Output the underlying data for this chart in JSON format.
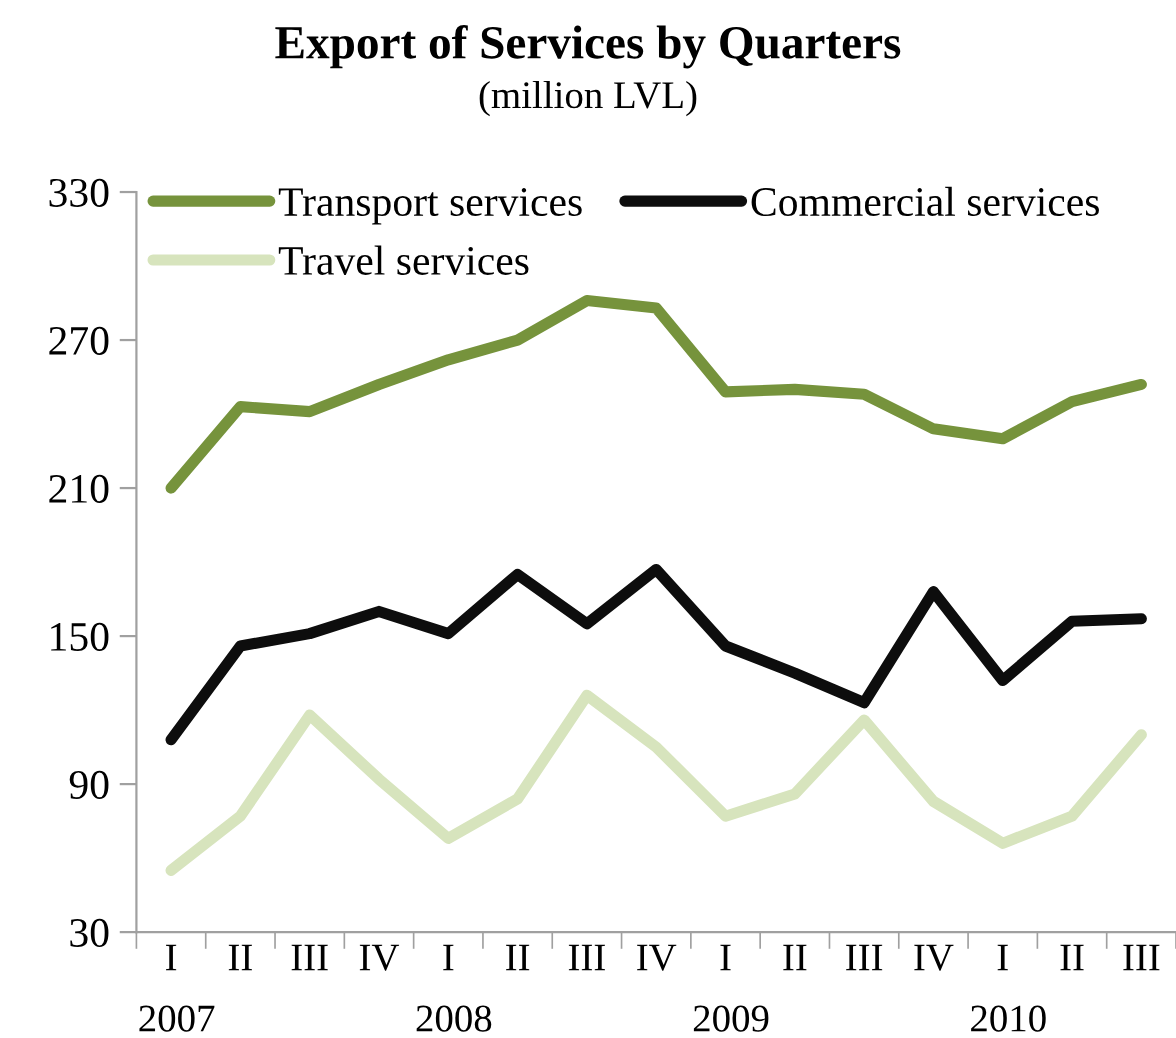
{
  "chart_data": {
    "type": "line",
    "title": "Export of Services by Quarters",
    "subtitle": "(million LVL)",
    "categories": [
      "I",
      "II",
      "III",
      "IV",
      "I",
      "II",
      "III",
      "IV",
      "I",
      "II",
      "III",
      "IV",
      "I",
      "II",
      "III"
    ],
    "annotations": [
      "2007",
      "2008",
      "2009",
      "2010"
    ],
    "series": [
      {
        "name": "Transport services",
        "color": "#76933c",
        "values": [
          210,
          243,
          241,
          252,
          262,
          270,
          286,
          283,
          249,
          250,
          248,
          234,
          230,
          245,
          252
        ]
      },
      {
        "name": "Commercial services",
        "color": "#0d0d0d",
        "values": [
          108,
          146,
          151,
          160,
          151,
          175,
          155,
          177,
          146,
          135,
          123,
          168,
          132,
          156,
          157
        ]
      },
      {
        "name": "Travel services",
        "color": "#d7e4bd",
        "values": [
          55,
          77,
          118,
          92,
          68,
          84,
          126,
          105,
          77,
          86,
          116,
          83,
          66,
          77,
          110
        ]
      }
    ],
    "ylim": [
      30,
      330
    ],
    "yticks": [
      30,
      90,
      150,
      210,
      270,
      330
    ],
    "grid": false,
    "legend": "top",
    "marker": "none",
    "line_style": "solid"
  }
}
